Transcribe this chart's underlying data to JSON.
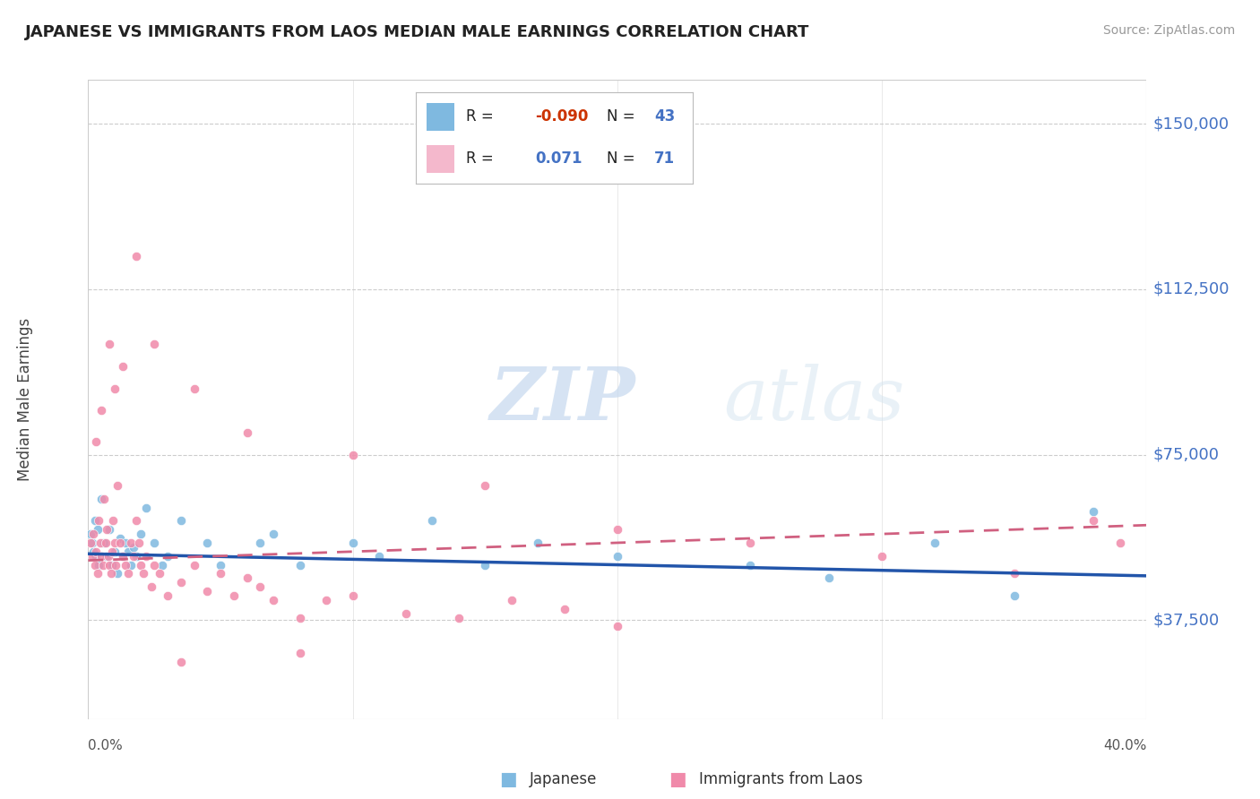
{
  "title": "JAPANESE VS IMMIGRANTS FROM LAOS MEDIAN MALE EARNINGS CORRELATION CHART",
  "source": "Source: ZipAtlas.com",
  "ylabel": "Median Male Earnings",
  "y_ticks": [
    37500,
    75000,
    112500,
    150000
  ],
  "y_tick_labels": [
    "$37,500",
    "$75,000",
    "$112,500",
    "$150,000"
  ],
  "x_min": 0.0,
  "x_max": 40.0,
  "y_min": 15000,
  "y_max": 160000,
  "color_japanese": "#7fb9e0",
  "color_laos": "#f08aaa",
  "color_trend_japanese": "#2255aa",
  "color_trend_laos": "#d06080",
  "watermark_zip": "ZIP",
  "watermark_atlas": "atlas",
  "r_japanese": -0.09,
  "n_japanese": 43,
  "r_laos": 0.071,
  "n_laos": 71,
  "japanese_x": [
    0.1,
    0.15,
    0.2,
    0.25,
    0.3,
    0.35,
    0.4,
    0.5,
    0.6,
    0.7,
    0.8,
    0.9,
    1.0,
    1.1,
    1.2,
    1.3,
    1.4,
    1.5,
    1.6,
    1.7,
    1.8,
    2.0,
    2.2,
    2.5,
    2.8,
    3.0,
    3.5,
    4.5,
    5.0,
    6.5,
    7.0,
    8.0,
    10.0,
    11.0,
    13.0,
    15.0,
    17.0,
    20.0,
    25.0,
    28.0,
    32.0,
    35.0,
    38.0
  ],
  "japanese_y": [
    57000,
    55000,
    53000,
    60000,
    52000,
    58000,
    50000,
    65000,
    55000,
    52000,
    58000,
    50000,
    53000,
    48000,
    56000,
    52000,
    55000,
    53000,
    50000,
    54000,
    52000,
    57000,
    63000,
    55000,
    50000,
    52000,
    60000,
    55000,
    50000,
    55000,
    57000,
    50000,
    55000,
    52000,
    60000,
    50000,
    55000,
    52000,
    50000,
    47000,
    55000,
    43000,
    62000
  ],
  "laos_x": [
    0.1,
    0.15,
    0.2,
    0.25,
    0.3,
    0.35,
    0.4,
    0.45,
    0.5,
    0.55,
    0.6,
    0.65,
    0.7,
    0.75,
    0.8,
    0.85,
    0.9,
    0.95,
    1.0,
    1.05,
    1.1,
    1.2,
    1.3,
    1.4,
    1.5,
    1.6,
    1.7,
    1.8,
    1.9,
    2.0,
    2.1,
    2.2,
    2.4,
    2.5,
    2.7,
    3.0,
    3.5,
    4.0,
    4.5,
    5.0,
    5.5,
    6.0,
    6.5,
    7.0,
    8.0,
    9.0,
    10.0,
    12.0,
    14.0,
    16.0,
    18.0,
    20.0,
    0.3,
    0.5,
    0.8,
    1.0,
    1.3,
    1.8,
    2.5,
    4.0,
    6.0,
    10.0,
    15.0,
    20.0,
    25.0,
    30.0,
    35.0,
    38.0,
    39.0,
    3.5,
    8.0
  ],
  "laos_y": [
    55000,
    52000,
    57000,
    50000,
    53000,
    48000,
    60000,
    55000,
    52000,
    50000,
    65000,
    55000,
    58000,
    52000,
    50000,
    48000,
    53000,
    60000,
    55000,
    50000,
    68000,
    55000,
    52000,
    50000,
    48000,
    55000,
    52000,
    60000,
    55000,
    50000,
    48000,
    52000,
    45000,
    50000,
    48000,
    43000,
    46000,
    50000,
    44000,
    48000,
    43000,
    47000,
    45000,
    42000,
    38000,
    42000,
    43000,
    39000,
    38000,
    42000,
    40000,
    36000,
    78000,
    85000,
    100000,
    90000,
    95000,
    120000,
    100000,
    90000,
    80000,
    75000,
    68000,
    58000,
    55000,
    52000,
    48000,
    60000,
    55000,
    28000,
    30000
  ]
}
